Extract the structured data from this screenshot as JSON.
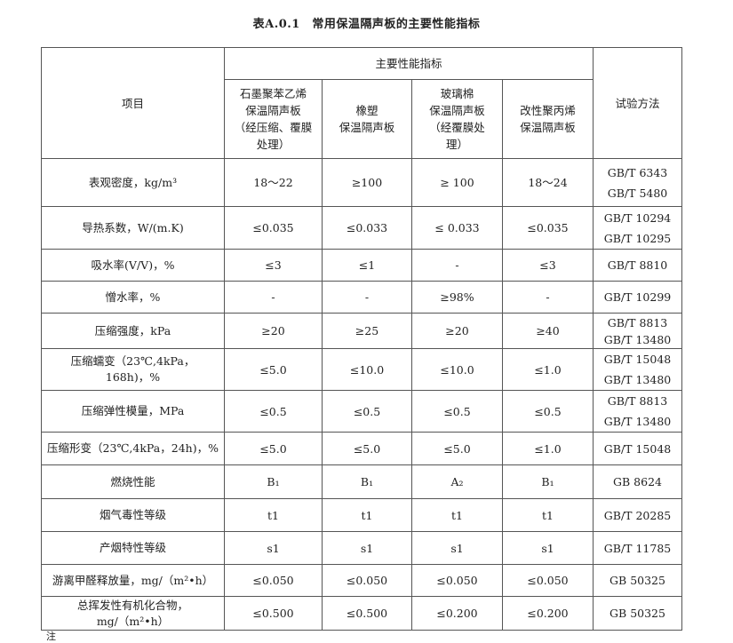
{
  "title": "表A.0.1　常用保温隔声板的主要性能指标",
  "header": {
    "item": "项目",
    "group": "主要性能指标",
    "method": "试验方法",
    "materials": [
      [
        "石墨聚苯乙烯",
        "保温隔声板",
        "（经压缩、覆膜",
        "处理）"
      ],
      [
        "橡塑",
        "保温隔声板"
      ],
      [
        "玻璃棉",
        "保温隔声板",
        "（经覆膜处",
        "理）"
      ],
      [
        "改性聚丙烯",
        "保温隔声板"
      ]
    ]
  },
  "rows": [
    {
      "item": [
        "表观密度，kg/m³"
      ],
      "values": [
        "18～22",
        "≥100",
        "≥ 100",
        "18～24"
      ],
      "method": [
        "GB/T 6343",
        "GB/T 5480"
      ]
    },
    {
      "item": [
        "导热系数，W/(m.K)"
      ],
      "values": [
        "≤0.035",
        "≤0.033",
        "≤ 0.033",
        "≤0.035"
      ],
      "method": [
        "GB/T 10294",
        "GB/T 10295"
      ]
    },
    {
      "item": [
        "吸水率(V/V)，%"
      ],
      "values": [
        "≤3",
        "≤1",
        "-",
        "≤3"
      ],
      "method": [
        "GB/T 8810"
      ]
    },
    {
      "item": [
        "憎水率，%"
      ],
      "values": [
        "-",
        "-",
        "≥98%",
        "-"
      ],
      "method": [
        "GB/T 10299"
      ]
    },
    {
      "item": [
        "压缩强度，kPa"
      ],
      "values": [
        "≥20",
        "≥25",
        "≥20",
        "≥40"
      ],
      "method": [
        "GB/T 8813",
        "GB/T 13480"
      ]
    },
    {
      "item": [
        "压缩蠕变（23℃,4kPa，",
        "168h)，%"
      ],
      "values": [
        "≤5.0",
        "≤10.0",
        "≤10.0",
        "≤1.0"
      ],
      "method": [
        "GB/T 15048",
        "GB/T 13480"
      ]
    },
    {
      "item": [
        "压缩弹性模量，MPa"
      ],
      "values": [
        "≤0.5",
        "≤0.5",
        "≤0.5",
        "≤0.5"
      ],
      "method": [
        "GB/T 8813",
        "GB/T 13480"
      ]
    },
    {
      "item": [
        "压缩形变（23℃,4kPa，24h)，%"
      ],
      "values": [
        "≤5.0",
        "≤5.0",
        "≤5.0",
        "≤1.0"
      ],
      "method": [
        "GB/T 15048"
      ]
    },
    {
      "item": [
        "燃烧性能"
      ],
      "values": [
        "B₁",
        "B₁",
        "A₂",
        "B₁"
      ],
      "method": [
        "GB 8624"
      ]
    },
    {
      "item": [
        "烟气毒性等级"
      ],
      "values": [
        "t1",
        "t1",
        "t1",
        "t1"
      ],
      "method": [
        "GB/T 20285"
      ]
    },
    {
      "item": [
        "产烟特性等级"
      ],
      "values": [
        "s1",
        "s1",
        "s1",
        "s1"
      ],
      "method": [
        "GB/T 11785"
      ]
    },
    {
      "item": [
        "游离甲醛释放量，mg/（m²•h）"
      ],
      "values": [
        "≤0.050",
        "≤0.050",
        "≤0.050",
        "≤0.050"
      ],
      "method": [
        "GB 50325"
      ]
    },
    {
      "item": [
        "总挥发性有机化合物，",
        "mg/（m²•h）"
      ],
      "values": [
        "≤0.500",
        "≤0.500",
        "≤0.200",
        "≤0.200"
      ],
      "method": [
        "GB 50325"
      ]
    }
  ],
  "note": "注"
}
